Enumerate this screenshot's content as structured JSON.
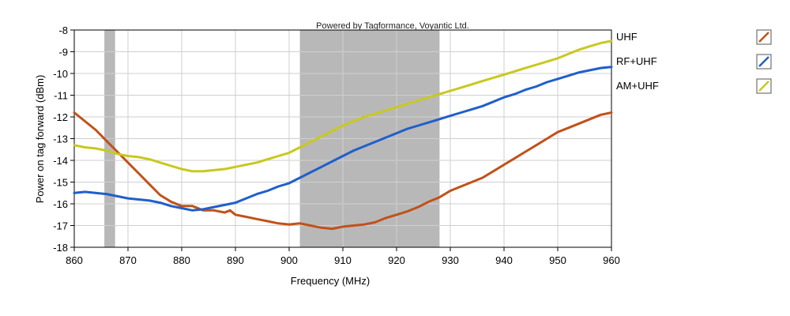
{
  "watermark": "Powered by Tagformance, Voyantic Ltd.",
  "chart_data": {
    "type": "line",
    "title": "",
    "xlabel": "Frequency (MHz)",
    "ylabel": "Power on tag forward (dBm)",
    "xlim": [
      860,
      960
    ],
    "ylim": [
      -18,
      -8
    ],
    "x_ticks": [
      860,
      870,
      880,
      890,
      900,
      910,
      920,
      930,
      940,
      950,
      960
    ],
    "y_ticks": [
      -8,
      -9,
      -10,
      -11,
      -12,
      -13,
      -14,
      -15,
      -16,
      -17,
      -18
    ],
    "grid": true,
    "legend_position": "right",
    "shaded_bands": [
      {
        "from": 865.6,
        "to": 867.6,
        "color": "#b8b8b8"
      },
      {
        "from": 902,
        "to": 928,
        "color": "#b8b8b8"
      }
    ],
    "series": [
      {
        "name": "UHF",
        "color": "#c0521a",
        "x": [
          860,
          862,
          864,
          866,
          868,
          870,
          872,
          874,
          876,
          878,
          880,
          882,
          884,
          886,
          888,
          889,
          890,
          892,
          894,
          896,
          898,
          900,
          902,
          904,
          906,
          908,
          910,
          912,
          914,
          916,
          918,
          920,
          922,
          924,
          926,
          928,
          930,
          932,
          934,
          936,
          938,
          940,
          942,
          944,
          946,
          948,
          950,
          952,
          954,
          956,
          958,
          960
        ],
        "values": [
          -11.8,
          -12.2,
          -12.6,
          -13.1,
          -13.6,
          -14.1,
          -14.6,
          -15.1,
          -15.6,
          -15.9,
          -16.1,
          -16.1,
          -16.3,
          -16.3,
          -16.4,
          -16.3,
          -16.5,
          -16.6,
          -16.7,
          -16.8,
          -16.9,
          -16.95,
          -16.9,
          -17.0,
          -17.1,
          -17.15,
          -17.05,
          -17.0,
          -16.95,
          -16.85,
          -16.65,
          -16.5,
          -16.35,
          -16.15,
          -15.9,
          -15.7,
          -15.4,
          -15.2,
          -15.0,
          -14.8,
          -14.5,
          -14.2,
          -13.9,
          -13.6,
          -13.3,
          -13.0,
          -12.7,
          -12.5,
          -12.3,
          -12.1,
          -11.9,
          -11.8
        ]
      },
      {
        "name": "RF+UHF",
        "color": "#1f5fcc",
        "x": [
          860,
          862,
          864,
          866,
          868,
          870,
          872,
          874,
          876,
          878,
          880,
          882,
          884,
          886,
          888,
          890,
          892,
          894,
          896,
          898,
          900,
          902,
          904,
          906,
          908,
          910,
          912,
          914,
          916,
          918,
          920,
          922,
          924,
          926,
          928,
          930,
          932,
          934,
          936,
          938,
          940,
          942,
          944,
          946,
          948,
          950,
          952,
          954,
          956,
          958,
          960
        ],
        "values": [
          -15.5,
          -15.45,
          -15.5,
          -15.55,
          -15.65,
          -15.75,
          -15.8,
          -15.85,
          -15.95,
          -16.1,
          -16.2,
          -16.3,
          -16.25,
          -16.15,
          -16.05,
          -15.95,
          -15.75,
          -15.55,
          -15.4,
          -15.2,
          -15.05,
          -14.8,
          -14.55,
          -14.3,
          -14.05,
          -13.8,
          -13.55,
          -13.35,
          -13.15,
          -12.95,
          -12.75,
          -12.55,
          -12.4,
          -12.25,
          -12.1,
          -11.95,
          -11.8,
          -11.65,
          -11.5,
          -11.3,
          -11.1,
          -10.95,
          -10.75,
          -10.6,
          -10.4,
          -10.25,
          -10.1,
          -9.95,
          -9.85,
          -9.75,
          -9.7
        ]
      },
      {
        "name": "AM+UHF",
        "color": "#c8c820",
        "x": [
          860,
          862,
          864,
          866,
          868,
          870,
          872,
          874,
          876,
          878,
          880,
          882,
          884,
          886,
          888,
          890,
          892,
          894,
          896,
          898,
          900,
          902,
          904,
          906,
          908,
          910,
          912,
          914,
          916,
          918,
          920,
          922,
          924,
          926,
          928,
          930,
          932,
          934,
          936,
          938,
          940,
          942,
          944,
          946,
          948,
          950,
          952,
          954,
          956,
          958,
          960
        ],
        "values": [
          -13.3,
          -13.4,
          -13.45,
          -13.55,
          -13.7,
          -13.8,
          -13.85,
          -13.95,
          -14.1,
          -14.25,
          -14.4,
          -14.5,
          -14.5,
          -14.45,
          -14.4,
          -14.3,
          -14.2,
          -14.1,
          -13.95,
          -13.8,
          -13.65,
          -13.4,
          -13.15,
          -12.9,
          -12.65,
          -12.4,
          -12.2,
          -12.0,
          -11.85,
          -11.7,
          -11.55,
          -11.4,
          -11.25,
          -11.1,
          -10.95,
          -10.8,
          -10.65,
          -10.5,
          -10.35,
          -10.2,
          -10.05,
          -9.9,
          -9.75,
          -9.6,
          -9.45,
          -9.3,
          -9.1,
          -8.9,
          -8.75,
          -8.6,
          -8.5
        ]
      }
    ]
  }
}
